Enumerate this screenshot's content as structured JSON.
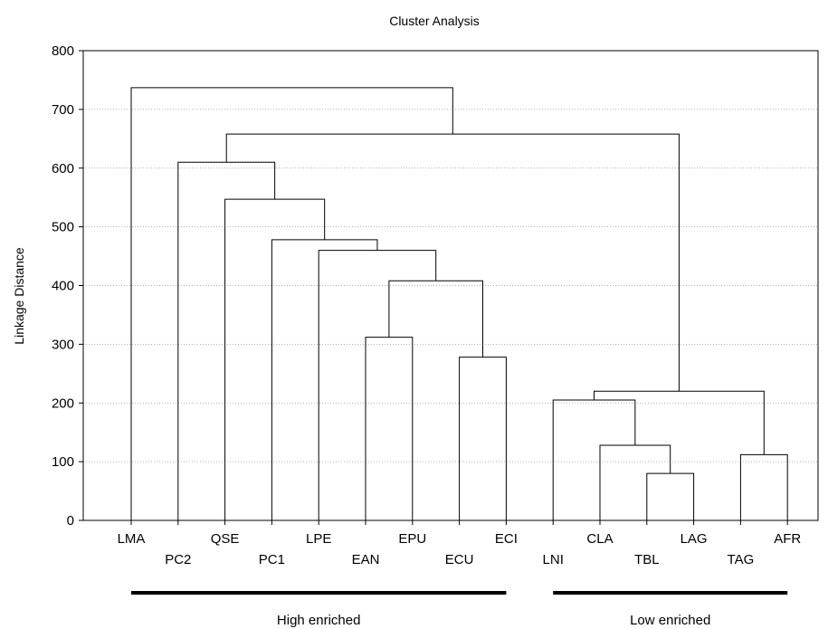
{
  "chart_data": {
    "type": "dendrogram",
    "title": "Cluster Analysis",
    "ylabel": "Linkage Distance",
    "ylim": [
      0,
      800
    ],
    "yticks": [
      0,
      100,
      200,
      300,
      400,
      500,
      600,
      700,
      800
    ],
    "grid": true,
    "leaves": [
      "LMA",
      "PC2",
      "QSE",
      "PC1",
      "LPE",
      "EAN",
      "EPU",
      "ECU",
      "ECI",
      "LNI",
      "CLA",
      "TBL",
      "LAG",
      "TAG",
      "AFR"
    ],
    "links": [
      {
        "id": "m1",
        "left": "LAG",
        "right": "TBL",
        "height": 80
      },
      {
        "id": "m2",
        "left": "AFR",
        "right": "TAG",
        "height": 112
      },
      {
        "id": "m3",
        "left": "CLA",
        "right": "m1",
        "height": 128
      },
      {
        "id": "m4",
        "left": "LNI",
        "right": "m3",
        "height": 205
      },
      {
        "id": "m5",
        "left": "m4",
        "right": "m2",
        "height": 220
      },
      {
        "id": "m6",
        "left": "ECU",
        "right": "ECI",
        "height": 278
      },
      {
        "id": "m7",
        "left": "EAN",
        "right": "EPU",
        "height": 312
      },
      {
        "id": "m8",
        "left": "m7",
        "right": "m6",
        "height": 408
      },
      {
        "id": "m9",
        "left": "LPE",
        "right": "m8",
        "height": 460
      },
      {
        "id": "m10",
        "left": "PC1",
        "right": "m9",
        "height": 478
      },
      {
        "id": "m11",
        "left": "QSE",
        "right": "m10",
        "height": 547
      },
      {
        "id": "m12",
        "left": "PC2",
        "right": "m11",
        "height": 610
      },
      {
        "id": "m13",
        "left": "m12",
        "right": "m5",
        "height": 658
      },
      {
        "id": "m14",
        "left": "LMA",
        "right": "m13",
        "height": 737
      }
    ],
    "groups": [
      {
        "label": "High enriched",
        "from": "LMA",
        "to": "ECI"
      },
      {
        "label": "Low enriched",
        "from": "LNI",
        "to": "AFR"
      }
    ]
  }
}
